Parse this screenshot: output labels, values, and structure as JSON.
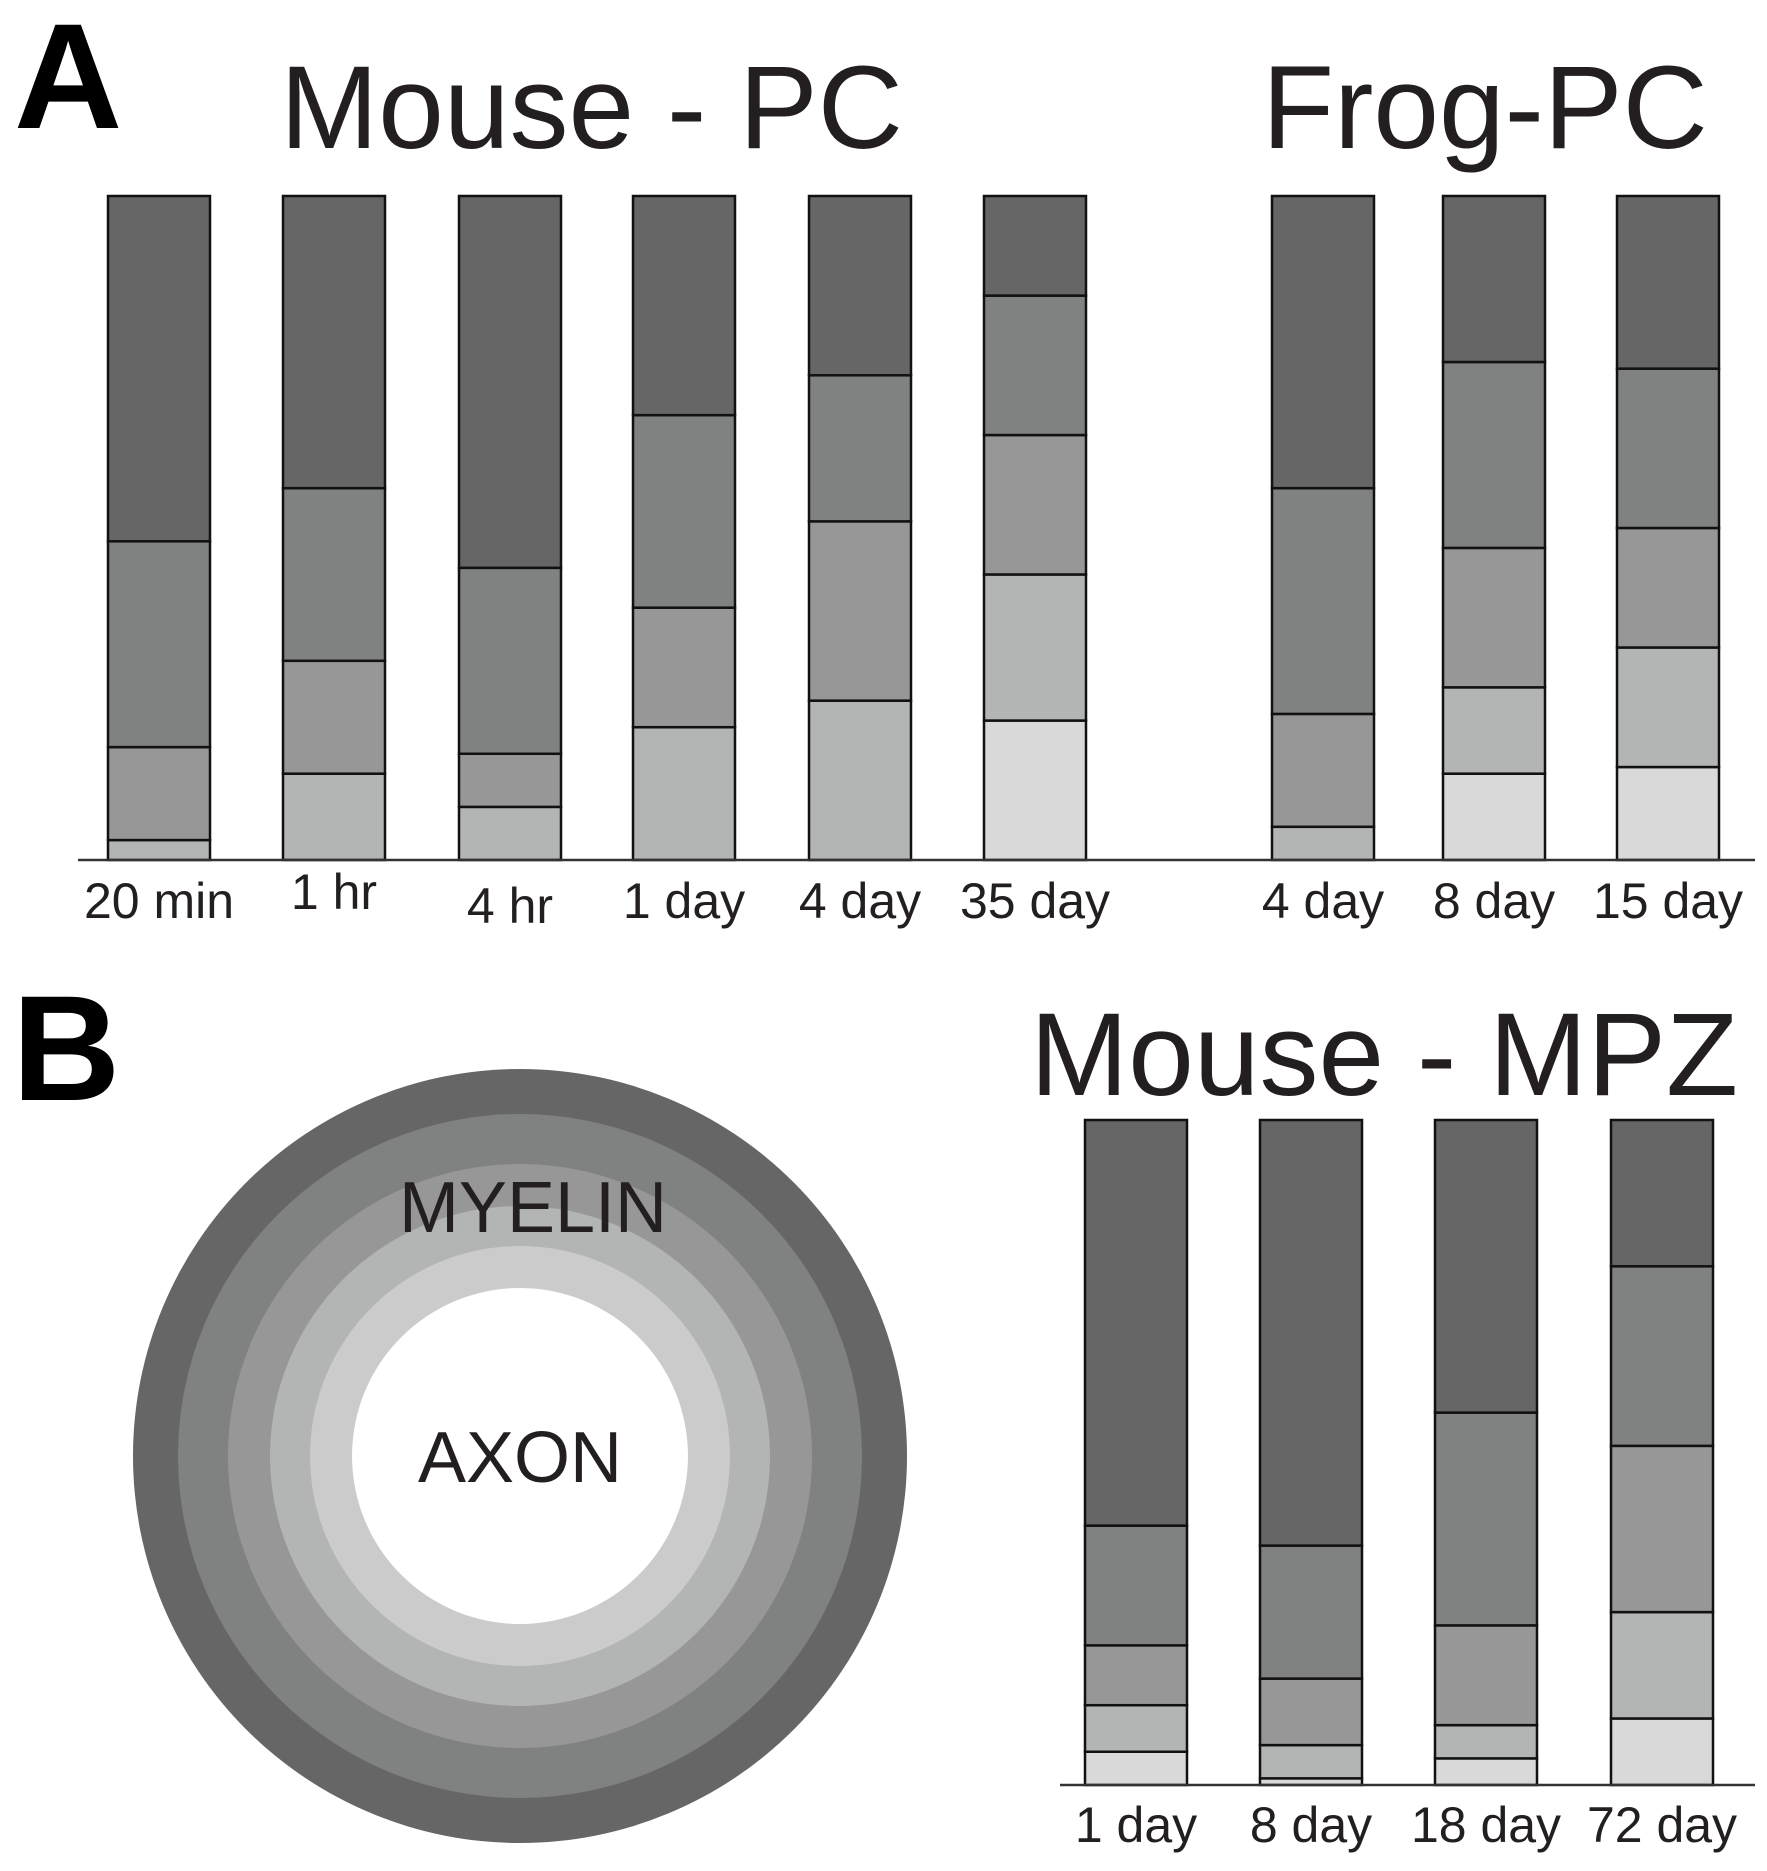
{
  "panels": {
    "A": {
      "letter": "A"
    },
    "B": {
      "letter": "B"
    }
  },
  "layer_colors": [
    "#d9d9d9",
    "#b3b4b4",
    "#979797",
    "#808181",
    "#666666"
  ],
  "diagram": {
    "myelin_label": "MYELIN",
    "axon_label": "AXON",
    "ring_colors": [
      "#666666",
      "#808181",
      "#979797",
      "#b3b4b4",
      "#cbcbcb"
    ],
    "center_color": "#ffffff"
  },
  "chart_data": [
    {
      "type": "bar",
      "stacked": true,
      "title": "Mouse - PC",
      "xlabel": "",
      "ylabel": "",
      "ylim": [
        0,
        100
      ],
      "categories": [
        "20 min",
        "1 hr",
        "4 hr",
        "1 day",
        "4 day",
        "35 day"
      ],
      "series": [
        {
          "values": [
            0,
            0,
            0,
            0,
            0,
            21
          ]
        },
        {
          "values": [
            3,
            13,
            8,
            20,
            24,
            22
          ]
        },
        {
          "values": [
            14,
            17,
            8,
            18,
            27,
            21
          ]
        },
        {
          "values": [
            31,
            26,
            28,
            29,
            22,
            21
          ]
        },
        {
          "values": [
            52,
            44,
            56,
            33,
            27,
            15
          ]
        }
      ]
    },
    {
      "type": "bar",
      "stacked": true,
      "title": "Frog-PC",
      "xlabel": "",
      "ylabel": "",
      "ylim": [
        0,
        100
      ],
      "categories": [
        "4 day",
        "8 day",
        "15 day"
      ],
      "series": [
        {
          "values": [
            0,
            13,
            14
          ]
        },
        {
          "values": [
            5,
            13,
            18
          ]
        },
        {
          "values": [
            17,
            21,
            18
          ]
        },
        {
          "values": [
            34,
            28,
            24
          ]
        },
        {
          "values": [
            44,
            25,
            26
          ]
        }
      ]
    },
    {
      "type": "bar",
      "stacked": true,
      "title": "Mouse - MPZ",
      "xlabel": "",
      "ylabel": "",
      "ylim": [
        0,
        100
      ],
      "categories": [
        "1 day",
        "8 day",
        "18 day",
        "72 day"
      ],
      "series": [
        {
          "values": [
            5,
            1,
            4,
            10
          ]
        },
        {
          "values": [
            7,
            5,
            5,
            16
          ]
        },
        {
          "values": [
            9,
            10,
            15,
            25
          ]
        },
        {
          "values": [
            18,
            20,
            32,
            27
          ]
        },
        {
          "values": [
            61,
            64,
            44,
            22
          ]
        }
      ]
    }
  ]
}
